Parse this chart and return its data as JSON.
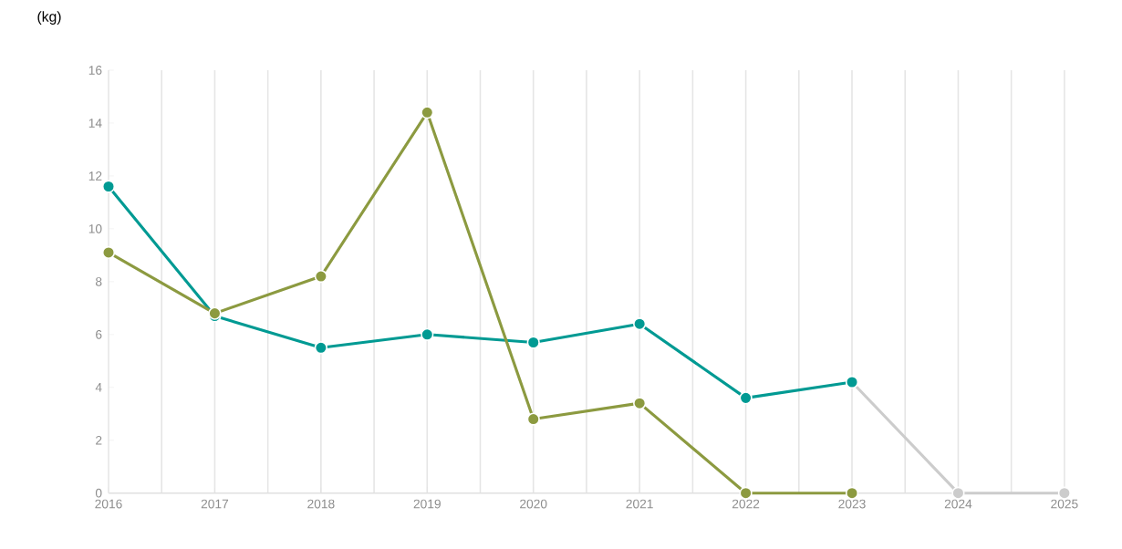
{
  "chart_data": {
    "type": "line",
    "ylabel": "(kg)",
    "x": [
      2016,
      2017,
      2018,
      2019,
      2020,
      2021,
      2022,
      2023,
      2024,
      2025
    ],
    "series": [
      {
        "color": "#cccccc",
        "values": [
          null,
          null,
          null,
          null,
          null,
          null,
          null,
          4.2,
          0,
          0
        ]
      },
      {
        "color": "#009a93",
        "values": [
          11.6,
          6.7,
          5.5,
          6.0,
          5.7,
          6.4,
          3.6,
          4.2,
          null,
          null
        ]
      },
      {
        "color": "#8c9a40",
        "values": [
          9.1,
          6.8,
          8.2,
          14.4,
          2.8,
          3.4,
          0,
          0,
          null,
          null
        ]
      }
    ],
    "xlim": [
      2016,
      2025
    ],
    "ylim": [
      0,
      16
    ],
    "xticks": [
      2016,
      2017,
      2018,
      2019,
      2020,
      2021,
      2022,
      2023,
      2024,
      2025
    ],
    "yticks": [
      0,
      2,
      4,
      6,
      8,
      10,
      12,
      14,
      16
    ],
    "grid": "x",
    "marker": "circle",
    "line_style": "solid"
  }
}
